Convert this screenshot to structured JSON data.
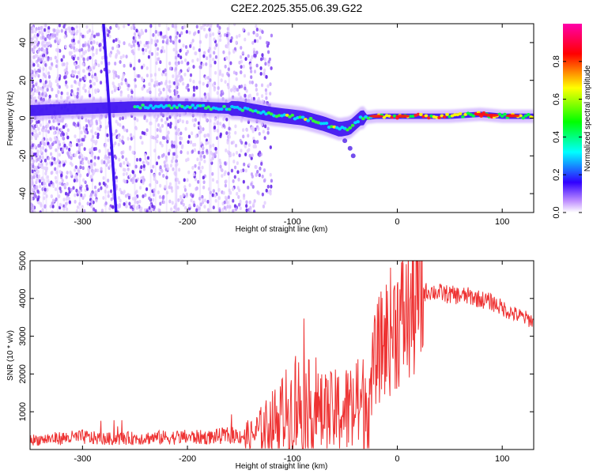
{
  "title": "C2E2.2025.355.06.39.G22",
  "chart_data": [
    {
      "type": "heatmap",
      "xlabel": "Height of straight line (km)",
      "ylabel": "Frequency (Hz)",
      "xlim": [
        -350,
        130
      ],
      "ylim": [
        -50,
        50
      ],
      "xticks": [
        -300,
        -200,
        -100,
        0,
        100
      ],
      "yticks": [
        -40,
        -20,
        0,
        20,
        40
      ],
      "colorbar": {
        "label": "Normalized spectral amplitude",
        "range": [
          0,
          1
        ],
        "ticks": [
          "0.0",
          "0.2",
          "0.4",
          "0.6",
          "0.8"
        ],
        "tick_values": [
          0.0,
          0.2,
          0.4,
          0.6,
          0.8
        ],
        "colors": [
          "#ffffff",
          "#b060ff",
          "#3000ff",
          "#00ffff",
          "#00ff00",
          "#ffff00",
          "#ff0000",
          "#ff00aa"
        ]
      },
      "ridge": {
        "x": [
          -350,
          -300,
          -250,
          -200,
          -150,
          -120,
          -90,
          -70,
          -55,
          -45,
          -35,
          -20,
          0,
          20,
          50,
          80,
          100,
          130
        ],
        "y": [
          4,
          5,
          6,
          6,
          5,
          2,
          0,
          -3,
          -6,
          -5,
          0,
          1,
          1,
          1,
          1,
          2,
          1,
          1
        ]
      },
      "streak": {
        "x": [
          -280,
          -268
        ],
        "y": [
          50,
          -50
        ]
      }
    },
    {
      "type": "line",
      "xlabel": "Height of straight line (km)",
      "ylabel": "SNR (10 * v/v)",
      "xlim": [
        -350,
        130
      ],
      "ylim": [
        0,
        5000
      ],
      "xticks": [
        -300,
        -200,
        -100,
        0,
        100
      ],
      "yticks": [
        1000,
        2000,
        3000,
        4000,
        5000
      ],
      "color": "#ee3333",
      "series": [
        {
          "name": "SNR",
          "x": [
            -350,
            -320,
            -300,
            -280,
            -250,
            -220,
            -200,
            -180,
            -160,
            -140,
            -120,
            -105,
            -95,
            -85,
            -70,
            -55,
            -40,
            -30,
            -20,
            -10,
            0,
            10,
            20,
            30,
            50,
            70,
            90,
            110,
            130
          ],
          "y": [
            250,
            300,
            330,
            280,
            300,
            320,
            330,
            320,
            380,
            350,
            700,
            1000,
            1200,
            1100,
            900,
            1000,
            1100,
            1200,
            2500,
            3000,
            3400,
            3500,
            4100,
            4200,
            4100,
            4050,
            3900,
            3600,
            3400
          ]
        }
      ]
    }
  ]
}
